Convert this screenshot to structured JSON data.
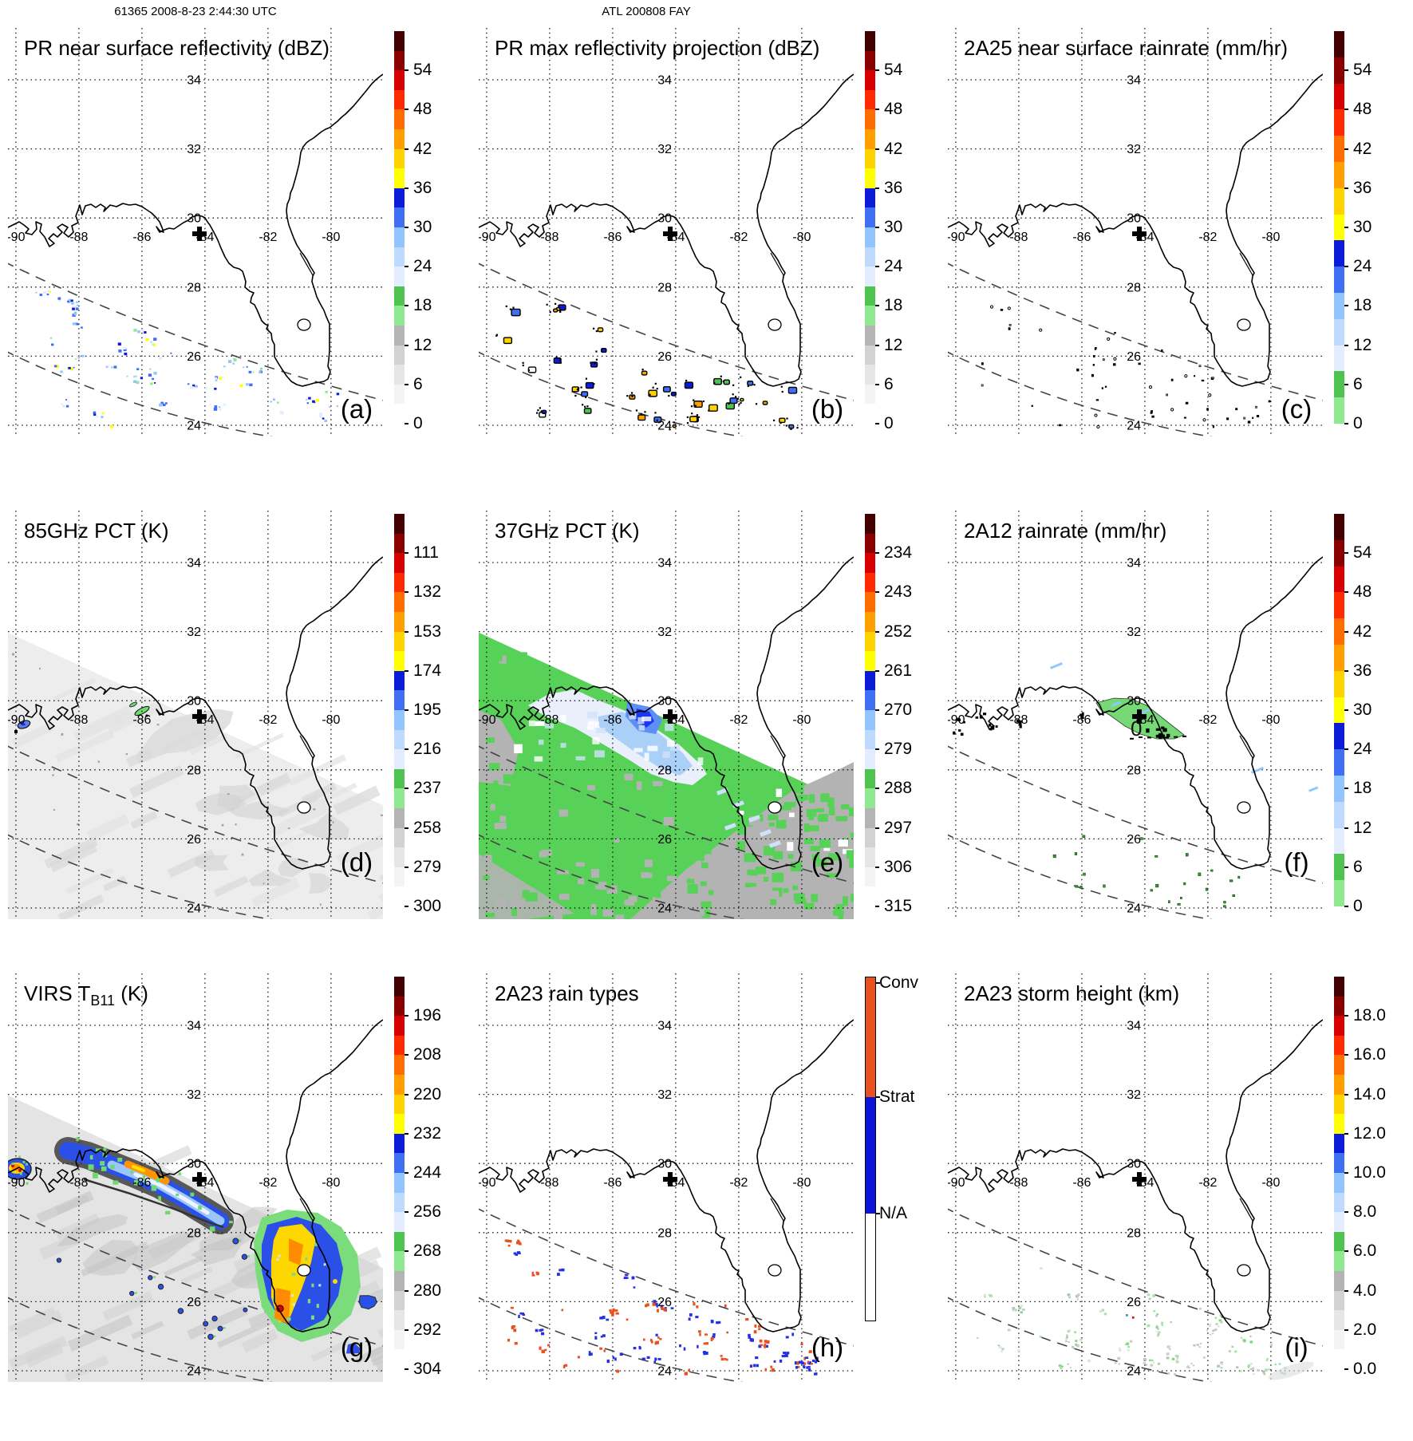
{
  "header": {
    "left": "61365 2008-8-23 2:44:30 UTC",
    "center": "ATL 200808 FAY"
  },
  "grid": {
    "lat_labels": [
      "34",
      "32",
      "30",
      "28",
      "26",
      "24"
    ],
    "lon_labels": [
      "-90",
      "-88",
      "-86",
      "-84",
      "-82",
      "-80"
    ]
  },
  "palettes": {
    "with_gray": [
      "#ffffff",
      "#f4f4f4",
      "#e6e6e6",
      "#d2d2d2",
      "#b4b4b4",
      "#90e890",
      "#4fc34f",
      "#e4edff",
      "#bedaff",
      "#92c5ff",
      "#3f6ff2",
      "#0c1bd9",
      "#ffff00",
      "#ffd300",
      "#ffa000",
      "#ff6d00",
      "#ff2b00",
      "#d60000",
      "#8a0000",
      "#420000"
    ],
    "no_gray": [
      "#90e890",
      "#4fc34f",
      "#e4edff",
      "#bedaff",
      "#92c5ff",
      "#3f6ff2",
      "#0c1bd9",
      "#ffff00",
      "#ffd300",
      "#ffa000",
      "#ff6d00",
      "#ff2b00",
      "#d60000",
      "#8a0000",
      "#420000"
    ],
    "rain_types": {
      "conv": "#e8501e",
      "strat": "#0d12dd",
      "na": "#ffffff"
    }
  },
  "panels": [
    {
      "id": "a",
      "letter": "(a)",
      "title": "PR near surface reflectivity (dBZ)",
      "title_sub": "",
      "title_tail": "",
      "colorbar": {
        "type": "seq",
        "palette": "with_gray",
        "ticks": [
          "54",
          "48",
          "42",
          "36",
          "30",
          "24",
          "18",
          "12",
          "6",
          "0"
        ]
      }
    },
    {
      "id": "b",
      "letter": "(b)",
      "title": "PR max reflectivity projection (dBZ)",
      "title_sub": "",
      "title_tail": "",
      "colorbar": {
        "type": "seq",
        "palette": "with_gray",
        "ticks": [
          "54",
          "48",
          "42",
          "36",
          "30",
          "24",
          "18",
          "12",
          "6",
          "0"
        ]
      }
    },
    {
      "id": "c",
      "letter": "(c)",
      "title": "2A25 near surface rainrate (mm/hr)",
      "title_sub": "",
      "title_tail": "",
      "colorbar": {
        "type": "seq",
        "palette": "no_gray",
        "ticks": [
          "54",
          "48",
          "42",
          "36",
          "30",
          "24",
          "18",
          "12",
          "6",
          "0"
        ]
      }
    },
    {
      "id": "d",
      "letter": "(d)",
      "title": "85GHz PCT (K)",
      "title_sub": "",
      "title_tail": "",
      "colorbar": {
        "type": "seq",
        "palette": "with_gray",
        "ticks": [
          "111",
          "132",
          "153",
          "174",
          "195",
          "216",
          "237",
          "258",
          "279",
          "300"
        ]
      }
    },
    {
      "id": "e",
      "letter": "(e)",
      "title": "37GHz PCT (K)",
      "title_sub": "",
      "title_tail": "",
      "colorbar": {
        "type": "seq",
        "palette": "with_gray",
        "ticks": [
          "234",
          "243",
          "252",
          "261",
          "270",
          "279",
          "288",
          "297",
          "306",
          "315"
        ]
      }
    },
    {
      "id": "f",
      "letter": "(f)",
      "title": "2A12 rainrate (mm/hr)",
      "title_sub": "",
      "title_tail": "",
      "map_label": "0",
      "colorbar": {
        "type": "seq",
        "palette": "no_gray",
        "ticks": [
          "54",
          "48",
          "42",
          "36",
          "30",
          "24",
          "18",
          "12",
          "6",
          "0"
        ]
      }
    },
    {
      "id": "g",
      "letter": "(g)",
      "title": "VIRS T",
      "title_sub": "B11",
      "title_tail": " (K)",
      "colorbar": {
        "type": "seq",
        "palette": "with_gray",
        "ticks": [
          "196",
          "208",
          "220",
          "232",
          "244",
          "256",
          "268",
          "280",
          "292",
          "304"
        ]
      }
    },
    {
      "id": "h",
      "letter": "(h)",
      "title": "2A23 rain types",
      "title_sub": "",
      "title_tail": "",
      "colorbar": {
        "type": "cat",
        "labels": [
          "Conv",
          "Strat",
          "N/A"
        ]
      }
    },
    {
      "id": "i",
      "letter": "(i)",
      "title": "2A23 storm height (km)",
      "title_sub": "",
      "title_tail": "",
      "colorbar": {
        "type": "seq",
        "palette": "with_gray",
        "ticks": [
          "18.0",
          "16.0",
          "14.0",
          "12.0",
          "10.0",
          "8.0",
          "6.0",
          "4.0",
          "2.0",
          "0.0"
        ]
      }
    }
  ],
  "chart_data": [
    {
      "panel": "(a)",
      "type": "heatmap",
      "title": "PR near surface reflectivity (dBZ)",
      "colorbar_ticks": [
        54,
        48,
        42,
        36,
        30,
        24,
        18,
        12,
        6,
        0
      ],
      "units": "dBZ",
      "lat_ticks": [
        34,
        32,
        30,
        28,
        26,
        24
      ],
      "lon_ticks": [
        -90,
        -88,
        -86,
        -84,
        -82,
        -80
      ],
      "features": "scattered light rain echoes 18-36 dBZ over Gulf between PR swath edges, storm center marker near -84.2,29.9"
    },
    {
      "panel": "(b)",
      "type": "heatmap",
      "title": "PR max reflectivity projection (dBZ)",
      "colorbar_ticks": [
        54,
        48,
        42,
        36,
        30,
        24,
        18,
        12,
        6,
        0
      ],
      "units": "dBZ",
      "features": "small outlined convective cells with yellow/orange/blue cores over Gulf"
    },
    {
      "panel": "(c)",
      "type": "heatmap",
      "title": "2A25 near surface rainrate (mm/hr)",
      "colorbar_ticks": [
        54,
        48,
        42,
        36,
        30,
        24,
        18,
        12,
        6,
        0
      ],
      "units": "mm/hr",
      "features": "sparse small dark rain pixels over Gulf"
    },
    {
      "panel": "(d)",
      "type": "heatmap",
      "title": "85GHz PCT (K)",
      "colorbar_ticks": [
        111,
        132,
        153,
        174,
        195,
        216,
        237,
        258,
        279,
        300
      ],
      "units": "K",
      "features": "TMI swath of warm (gray ~280-300K) PCT; small depressions near -86,29.5 and near -90,29"
    },
    {
      "panel": "(e)",
      "type": "heatmap",
      "title": "37GHz PCT (K)",
      "colorbar_ticks": [
        234,
        243,
        252,
        261,
        270,
        279,
        288,
        297,
        306,
        315
      ],
      "units": "K",
      "features": "green ~285K swath, pale/dark blue depression ~270K centered near -85.8,29.4, gray ~300K at swath edges"
    },
    {
      "panel": "(f)",
      "type": "heatmap",
      "title": "2A12 rainrate (mm/hr)",
      "colorbar_ticks": [
        54,
        48,
        42,
        36,
        30,
        24,
        18,
        12,
        6,
        0
      ],
      "units": "mm/hr",
      "features": "green light-rain region over Apalachee Bay with 0-contour label, scattered green pixels south"
    },
    {
      "panel": "(g)",
      "type": "heatmap",
      "title": "VIRS TB11 (K)",
      "colorbar_ticks": [
        196,
        208,
        220,
        232,
        244,
        256,
        268,
        280,
        292,
        304
      ],
      "units": "K",
      "features": "cold cloud bands: blue/orange band along Gulf coast, cold yellow/orange cluster near -81,27, warm gray background"
    },
    {
      "panel": "(h)",
      "type": "heatmap",
      "title": "2A23 rain types",
      "colorbar_ticks": [
        "Conv",
        "Strat",
        "N/A"
      ],
      "units": "category",
      "features": "scattered convective (red) and stratiform (blue) pixels over Gulf"
    },
    {
      "panel": "(i)",
      "type": "heatmap",
      "title": "2A23 storm height (km)",
      "colorbar_ticks": [
        18,
        16,
        14,
        12,
        10,
        8,
        6,
        4,
        2,
        0
      ],
      "units": "km",
      "features": "sparse pale gray-green storm-height pixels 2-6 km over Gulf"
    }
  ]
}
